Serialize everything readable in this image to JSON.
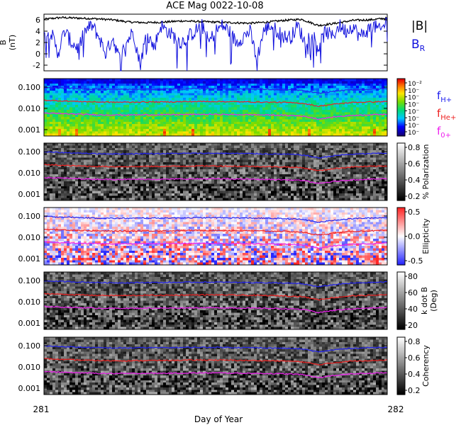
{
  "title": "ACE Mag 0022-10-08",
  "x_axis": {
    "label": "Day of Year",
    "start": "281",
    "end": "282"
  },
  "chart_data": [
    {
      "type": "line",
      "panel": "magnetic-field",
      "ylabel": "B",
      "yunit": "(nT)",
      "ylim": [
        -3,
        7
      ],
      "yticks": [
        "6",
        "4",
        "2",
        "0",
        "-2"
      ],
      "xlim": [
        281,
        282
      ],
      "series": [
        {
          "name": "|B|",
          "color": "#000000",
          "x": [
            281.0,
            281.05,
            281.1,
            281.15,
            281.2,
            281.25,
            281.3,
            281.35,
            281.4,
            281.45,
            281.5,
            281.55,
            281.6,
            281.65,
            281.7,
            281.75,
            281.8,
            281.85,
            281.9,
            281.95,
            282.0
          ],
          "values": [
            6.1,
            6.4,
            6.3,
            6.2,
            6.0,
            5.6,
            5.5,
            5.6,
            5.8,
            5.7,
            5.6,
            5.5,
            5.4,
            5.6,
            5.9,
            6.1,
            5.0,
            5.4,
            5.9,
            6.0,
            6.3
          ]
        },
        {
          "name": "B",
          "subscript": "R",
          "color": "#1111dd",
          "x": [
            281.0,
            281.02,
            281.04,
            281.06,
            281.08,
            281.1,
            281.12,
            281.14,
            281.16,
            281.18,
            281.2,
            281.22,
            281.24,
            281.26,
            281.28,
            281.3,
            281.32,
            281.34,
            281.36,
            281.38,
            281.4,
            281.42,
            281.44,
            281.46,
            281.48,
            281.5,
            281.52,
            281.54,
            281.56,
            281.58,
            281.6,
            281.62,
            281.64,
            281.66,
            281.68,
            281.7,
            281.72,
            281.74,
            281.76,
            281.78,
            281.8,
            281.82,
            281.84,
            281.86,
            281.88,
            281.9,
            281.92,
            281.94,
            281.96,
            281.98,
            282.0
          ],
          "values": [
            3,
            4,
            0,
            4,
            2,
            1,
            4,
            5,
            3,
            0,
            3,
            -1,
            2,
            4,
            -2,
            4,
            1,
            5,
            4,
            3,
            2,
            3,
            4,
            5,
            2,
            4,
            5,
            4,
            2,
            3,
            4,
            -1,
            4,
            5,
            4,
            3,
            3,
            5,
            2,
            4,
            1,
            4,
            3,
            5,
            4,
            5,
            3,
            4,
            5,
            4,
            6
          ]
        }
      ]
    },
    {
      "type": "heatmap",
      "panel": "power-spectrum",
      "yticks": [
        "0.100",
        "0.010",
        "0.001"
      ],
      "colorbar_ticks": [
        "10⁻²",
        "10⁻",
        "10⁻",
        "10⁻",
        "10⁻",
        "10⁻",
        "10⁻",
        "10⁻"
      ],
      "colormap": "rainbow",
      "lines": [
        {
          "name": "f",
          "subscript": "H+",
          "color": "#2222ee"
        },
        {
          "name": "f",
          "subscript": "He+",
          "color": "#ee2222"
        },
        {
          "name": "f",
          "subscript": "0+",
          "color": "#ee22ee"
        }
      ]
    },
    {
      "type": "heatmap",
      "panel": "polarization",
      "yticks": [
        "0.100",
        "0.010",
        "0.001"
      ],
      "colorbar_label": "% Polarization",
      "colorbar_ticks": [
        "0.8",
        "0.6",
        "0.4",
        "0.2"
      ],
      "colormap": "gray"
    },
    {
      "type": "heatmap",
      "panel": "ellipticity",
      "yticks": [
        "0.100",
        "0.010",
        "0.001"
      ],
      "colorbar_label": "Ellipticity",
      "colorbar_ticks": [
        "0.5",
        "0.0",
        "-0.5"
      ],
      "colormap": "bwr"
    },
    {
      "type": "heatmap",
      "panel": "k-dot-b",
      "yticks": [
        "0.100",
        "0.010",
        "0.001"
      ],
      "colorbar_label": "k dot B",
      "colorbar_unit": "(Deg)",
      "colorbar_ticks": [
        "80",
        "60",
        "40",
        "20"
      ],
      "colormap": "gray"
    },
    {
      "type": "heatmap",
      "panel": "coherency",
      "yticks": [
        "0.100",
        "0.010",
        "0.001"
      ],
      "colorbar_label": "Coherency",
      "colorbar_ticks": [
        "0.8",
        "0.6",
        "0.4",
        "0.2"
      ],
      "colormap": "gray"
    }
  ],
  "frequency_lines": {
    "x": [
      281.0,
      281.05,
      281.1,
      281.15,
      281.2,
      281.25,
      281.3,
      281.35,
      281.4,
      281.45,
      281.5,
      281.55,
      281.6,
      281.65,
      281.7,
      281.75,
      281.8,
      281.85,
      281.9,
      281.95,
      282.0
    ],
    "H+": [
      0.095,
      0.09,
      0.085,
      0.08,
      0.078,
      0.078,
      0.08,
      0.08,
      0.082,
      0.083,
      0.083,
      0.082,
      0.08,
      0.078,
      0.075,
      0.07,
      0.05,
      0.065,
      0.075,
      0.08,
      0.085
    ],
    "He+": [
      0.024,
      0.0225,
      0.021,
      0.02,
      0.0195,
      0.0195,
      0.02,
      0.02,
      0.0205,
      0.021,
      0.021,
      0.0205,
      0.02,
      0.0195,
      0.019,
      0.0175,
      0.0125,
      0.016,
      0.019,
      0.02,
      0.021
    ],
    "0+": [
      0.006,
      0.0056,
      0.0053,
      0.005,
      0.0049,
      0.0049,
      0.005,
      0.005,
      0.0051,
      0.0052,
      0.0052,
      0.0051,
      0.005,
      0.0049,
      0.0047,
      0.0044,
      0.0031,
      0.004,
      0.0047,
      0.005,
      0.0053
    ]
  }
}
